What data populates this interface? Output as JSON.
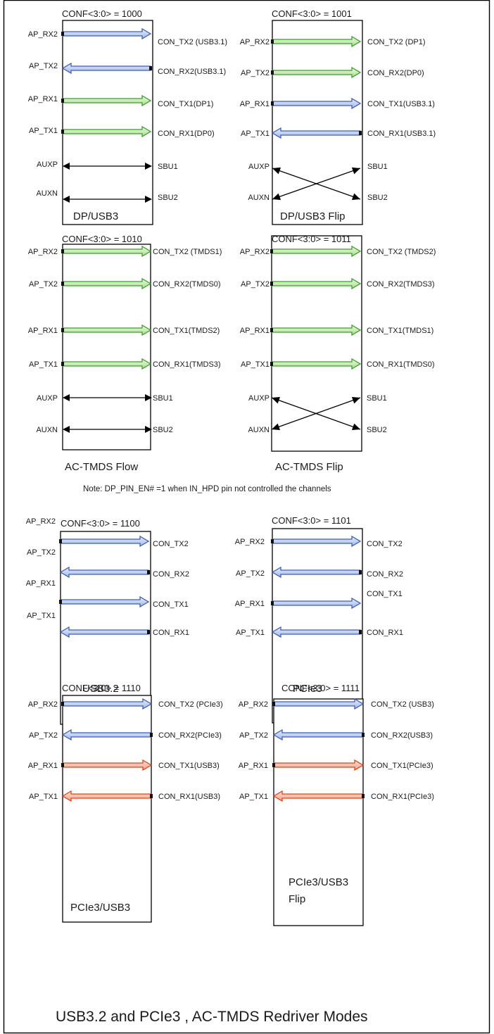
{
  "colors": {
    "blue": "#3e5db8",
    "blue_light": "#c3d4f0",
    "green": "#3c9d2f",
    "green_light": "#cfeebd",
    "red": "#e0411e",
    "red_light": "#f8cdb6",
    "line": "#000000"
  },
  "note": "Note: DP_PIN_EN# =1 when IN_HPD pin not controlled the channels",
  "footer_title": "USB3.2 and PCIe3 , AC-TMDS Redriver Modes",
  "panels": [
    {
      "conf": "CONF<3:0> = 1000",
      "mode": "DP/USB3",
      "rows": [
        {
          "left": "AP_RX2",
          "right": "CON_TX2 (USB3.1)",
          "dir": "right",
          "color": "blue"
        },
        {
          "left": "AP_TX2",
          "right": "CON_RX2(USB3.1)",
          "dir": "left",
          "color": "blue"
        },
        {
          "left": "AP_RX1",
          "right": "CON_TX1(DP1)",
          "dir": "right",
          "color": "green"
        },
        {
          "left": "AP_TX1",
          "right": "CON_RX1(DP0)",
          "dir": "right",
          "color": "green"
        },
        {
          "left": "AUXP",
          "right": "SBU1",
          "dir": "both",
          "color": "line"
        },
        {
          "left": "AUXN",
          "right": "SBU2",
          "dir": "both",
          "color": "line"
        }
      ]
    },
    {
      "conf": "CONF<3:0> = 1001",
      "mode": "DP/USB3 Flip",
      "rows": [
        {
          "left": "AP_RX2",
          "right": "CON_TX2 (DP1)",
          "dir": "right",
          "color": "green"
        },
        {
          "left": "AP_TX2",
          "right": "CON_RX2(DP0)",
          "dir": "right",
          "color": "green"
        },
        {
          "left": "AP_RX1",
          "right": "CON_TX1(USB3.1)",
          "dir": "right",
          "color": "blue"
        },
        {
          "left": "AP_TX1",
          "right": "CON_RX1(USB3.1)",
          "dir": "left",
          "color": "blue"
        },
        {
          "left": "AUXP",
          "right": "SBU1",
          "dir": "cross",
          "color": "line"
        },
        {
          "left": "AUXN",
          "right": "SBU2",
          "dir": "cross",
          "color": "line"
        }
      ]
    },
    {
      "conf": "CONF<3:0> = 1010",
      "mode": "AC-TMDS Flow",
      "rows": [
        {
          "left": "AP_RX2",
          "right": "CON_TX2 (TMDS1)",
          "dir": "right",
          "color": "green"
        },
        {
          "left": "AP_TX2",
          "right": "CON_RX2(TMDS0)",
          "dir": "right",
          "color": "green"
        },
        {
          "left": "AP_RX1",
          "right": "CON_TX1(TMDS2)",
          "dir": "right",
          "color": "green"
        },
        {
          "left": "AP_TX1",
          "right": "CON_RX1(TMDS3)",
          "dir": "right",
          "color": "green"
        },
        {
          "left": "AUXP",
          "right": "SBU1",
          "dir": "both",
          "color": "line"
        },
        {
          "left": "AUXN",
          "right": "SBU2",
          "dir": "both",
          "color": "line"
        }
      ]
    },
    {
      "conf": "CONF<3:0> = 1011",
      "mode": "AC-TMDS Flip",
      "rows": [
        {
          "left": "AP_RX2",
          "right": "CON_TX2 (TMDS2)",
          "dir": "right",
          "color": "green"
        },
        {
          "left": "AP_TX2",
          "right": "CON_RX2(TMDS3)",
          "dir": "right",
          "color": "green"
        },
        {
          "left": "AP_RX1",
          "right": "CON_TX1(TMDS1)",
          "dir": "right",
          "color": "green"
        },
        {
          "left": "AP_TX1",
          "right": "CON_RX1(TMDS0)",
          "dir": "right",
          "color": "green"
        },
        {
          "left": "AUXP",
          "right": "SBU1",
          "dir": "cross",
          "color": "line"
        },
        {
          "left": "AUXN",
          "right": "SBU2",
          "dir": "cross",
          "color": "line"
        }
      ]
    },
    {
      "conf": "CONF<3:0> = 1100",
      "mode": "USB3.2",
      "rows": [
        {
          "left": "AP_RX2",
          "right": "CON_TX2",
          "dir": "right",
          "color": "blue"
        },
        {
          "left": "AP_TX2",
          "right": "CON_RX2",
          "dir": "left",
          "color": "blue"
        },
        {
          "left": "AP_RX1",
          "right": "CON_TX1",
          "dir": "right",
          "color": "blue"
        },
        {
          "left": "AP_TX1",
          "right": "CON_RX1",
          "dir": "left",
          "color": "blue"
        }
      ]
    },
    {
      "conf": "CONF<3:0> = 1101",
      "mode": "PCIe3",
      "rows": [
        {
          "left": "AP_RX2",
          "right": "CON_TX2",
          "dir": "right",
          "color": "blue"
        },
        {
          "left": "AP_TX2",
          "right": "CON_RX2",
          "dir": "left",
          "color": "blue"
        },
        {
          "left": "AP_RX1",
          "right": "CON_TX1",
          "dir": "right",
          "color": "blue"
        },
        {
          "left": "AP_TX1",
          "right": "CON_RX1",
          "dir": "left",
          "color": "blue"
        }
      ]
    },
    {
      "conf": "CONF<3:0> = 1110",
      "mode": "PCIe3/USB3",
      "rows": [
        {
          "left": "AP_RX2",
          "right": "CON_TX2 (PCIe3)",
          "dir": "right",
          "color": "blue"
        },
        {
          "left": "AP_TX2",
          "right": "CON_RX2(PCIe3)",
          "dir": "left",
          "color": "blue"
        },
        {
          "left": "AP_RX1",
          "right": "CON_TX1(USB3)",
          "dir": "right",
          "color": "red"
        },
        {
          "left": "AP_TX1",
          "right": "CON_RX1(USB3)",
          "dir": "left",
          "color": "red"
        }
      ]
    },
    {
      "conf": "CONF<3:0> = 1111",
      "mode": "PCIe3/USB3 Flip",
      "rows": [
        {
          "left": "AP_RX2",
          "right": "CON_TX2 (USB3)",
          "dir": "right",
          "color": "blue"
        },
        {
          "left": "AP_TX2",
          "right": "CON_RX2(USB3)",
          "dir": "left",
          "color": "blue"
        },
        {
          "left": "AP_RX1",
          "right": "CON_TX1(PCIe3)",
          "dir": "right",
          "color": "red"
        },
        {
          "left": "AP_TX1",
          "right": "CON_RX1(PCIe3)",
          "dir": "left",
          "color": "red"
        }
      ]
    }
  ]
}
